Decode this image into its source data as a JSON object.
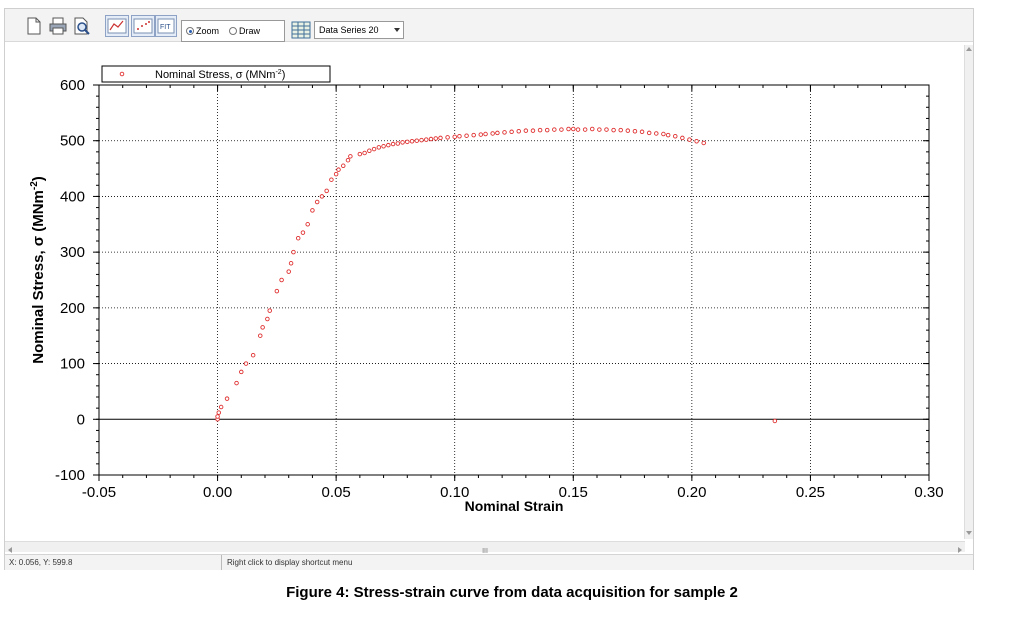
{
  "toolbar": {
    "icons": [
      "new-page-icon",
      "print-icon",
      "print-preview-icon",
      "line-chart-icon",
      "scatter-chart-icon",
      "fit-zoom-icon"
    ],
    "fit_label": "FIT",
    "radio_zoom": "Zoom",
    "radio_draw": "Draw",
    "radio_selected": "Zoom",
    "data_series_select": "Data Series 20"
  },
  "status": {
    "coords": "X: 0.056,  Y: 599.8",
    "hint": "Right click to display shortcut menu"
  },
  "hscroll_grip": "III",
  "caption": "Figure 4: Stress-strain curve from data acquisition for sample 2",
  "colors": {
    "series": "#e03030",
    "axis": "#000000",
    "grid": "#000000"
  },
  "chart_data": {
    "type": "scatter",
    "xlabel": "Nominal Strain",
    "ylabel": "Nominal Stress, σ (MNm",
    "ylabel_sup": "-2",
    "ylabel_tail": ")",
    "xlim": [
      -0.05,
      0.3
    ],
    "ylim": [
      -100,
      600
    ],
    "xticks": [
      -0.05,
      0.0,
      0.05,
      0.1,
      0.15,
      0.2,
      0.25,
      0.3
    ],
    "xtick_labels": [
      "-0.05",
      "0.00",
      "0.05",
      "0.10",
      "0.15",
      "0.20",
      "0.25",
      "0.30"
    ],
    "yticks": [
      -100,
      0,
      100,
      200,
      300,
      400,
      500,
      600
    ],
    "ytick_labels": [
      "-100",
      "0",
      "100",
      "200",
      "300",
      "400",
      "500",
      "600"
    ],
    "grid": true,
    "legend_position": "top-left",
    "series": [
      {
        "name": "Nominal Stress, σ (MNm",
        "name_sup": "-2",
        "name_tail": ")",
        "marker": "open-circle",
        "x": [
          0.0,
          0.0,
          0.0005,
          0.0015,
          0.004,
          0.008,
          0.01,
          0.012,
          0.015,
          0.018,
          0.019,
          0.021,
          0.022,
          0.025,
          0.027,
          0.03,
          0.031,
          0.032,
          0.034,
          0.036,
          0.038,
          0.04,
          0.042,
          0.044,
          0.046,
          0.048,
          0.05,
          0.051,
          0.053,
          0.055,
          0.056,
          0.06,
          0.062,
          0.064,
          0.066,
          0.068,
          0.07,
          0.072,
          0.074,
          0.076,
          0.078,
          0.08,
          0.082,
          0.084,
          0.086,
          0.088,
          0.09,
          0.092,
          0.094,
          0.097,
          0.1,
          0.102,
          0.105,
          0.108,
          0.111,
          0.113,
          0.116,
          0.118,
          0.121,
          0.124,
          0.127,
          0.13,
          0.133,
          0.136,
          0.139,
          0.142,
          0.145,
          0.148,
          0.15,
          0.152,
          0.155,
          0.158,
          0.161,
          0.164,
          0.167,
          0.17,
          0.173,
          0.176,
          0.179,
          0.182,
          0.185,
          0.188,
          0.19,
          0.193,
          0.196,
          0.199,
          0.202,
          0.205,
          0.235
        ],
        "y": [
          0,
          5,
          12,
          22,
          37,
          65,
          85,
          100,
          115,
          150,
          165,
          180,
          195,
          230,
          250,
          265,
          280,
          300,
          325,
          335,
          350,
          375,
          390,
          400,
          410,
          430,
          440,
          448,
          455,
          465,
          472,
          476,
          478,
          482,
          485,
          488,
          490,
          492,
          494,
          495,
          497,
          498,
          499,
          500,
          501,
          502,
          503,
          504,
          505,
          506,
          507,
          508,
          509,
          510,
          511,
          512,
          513,
          514,
          515,
          516,
          517,
          518,
          518,
          519,
          519,
          520,
          520,
          521,
          521,
          520,
          520,
          521,
          520,
          520,
          519,
          519,
          518,
          517,
          516,
          514,
          513,
          512,
          510,
          508,
          505,
          502,
          499,
          496,
          -3
        ]
      }
    ]
  }
}
